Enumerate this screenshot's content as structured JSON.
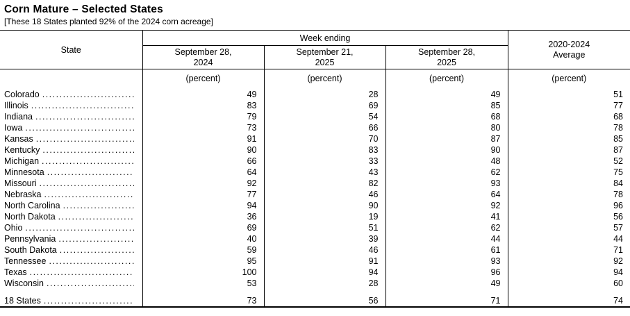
{
  "page": {
    "title": "Corn Mature – Selected States",
    "subtitle": "[These 18 States planted 92% of the 2024 corn acreage]"
  },
  "table": {
    "state_header": "State",
    "group_header": "Week ending",
    "columns": [
      {
        "line1": "September 28,",
        "line2": "2024"
      },
      {
        "line1": "September 21,",
        "line2": "2025"
      },
      {
        "line1": "September 28,",
        "line2": "2025"
      },
      {
        "line1": "2020-2024",
        "line2": "Average"
      }
    ],
    "unit_label": "(percent)",
    "rows": [
      {
        "state": "Colorado",
        "values": [
          "49",
          "28",
          "49",
          "51"
        ]
      },
      {
        "state": "Illinois",
        "values": [
          "83",
          "69",
          "85",
          "77"
        ]
      },
      {
        "state": "Indiana",
        "values": [
          "79",
          "54",
          "68",
          "68"
        ]
      },
      {
        "state": "Iowa",
        "values": [
          "73",
          "66",
          "80",
          "78"
        ]
      },
      {
        "state": "Kansas",
        "values": [
          "91",
          "70",
          "87",
          "85"
        ]
      },
      {
        "state": "Kentucky",
        "values": [
          "90",
          "83",
          "90",
          "87"
        ]
      },
      {
        "state": "Michigan",
        "values": [
          "66",
          "33",
          "48",
          "52"
        ]
      },
      {
        "state": "Minnesota",
        "values": [
          "64",
          "43",
          "62",
          "75"
        ]
      },
      {
        "state": "Missouri",
        "values": [
          "92",
          "82",
          "93",
          "84"
        ]
      },
      {
        "state": "Nebraska",
        "values": [
          "77",
          "46",
          "64",
          "78"
        ]
      },
      {
        "state": "North Carolina",
        "values": [
          "94",
          "90",
          "92",
          "96"
        ]
      },
      {
        "state": "North Dakota",
        "values": [
          "36",
          "19",
          "41",
          "56"
        ]
      },
      {
        "state": "Ohio",
        "values": [
          "69",
          "51",
          "62",
          "57"
        ]
      },
      {
        "state": "Pennsylvania",
        "values": [
          "40",
          "39",
          "44",
          "44"
        ]
      },
      {
        "state": "South Dakota",
        "values": [
          "59",
          "46",
          "61",
          "71"
        ]
      },
      {
        "state": "Tennessee",
        "values": [
          "95",
          "91",
          "93",
          "92"
        ]
      },
      {
        "state": "Texas",
        "values": [
          "100",
          "94",
          "96",
          "94"
        ]
      },
      {
        "state": "Wisconsin",
        "values": [
          "53",
          "28",
          "49",
          "60"
        ]
      }
    ],
    "total_row": {
      "state": "18 States",
      "values": [
        "73",
        "56",
        "71",
        "74"
      ]
    }
  }
}
